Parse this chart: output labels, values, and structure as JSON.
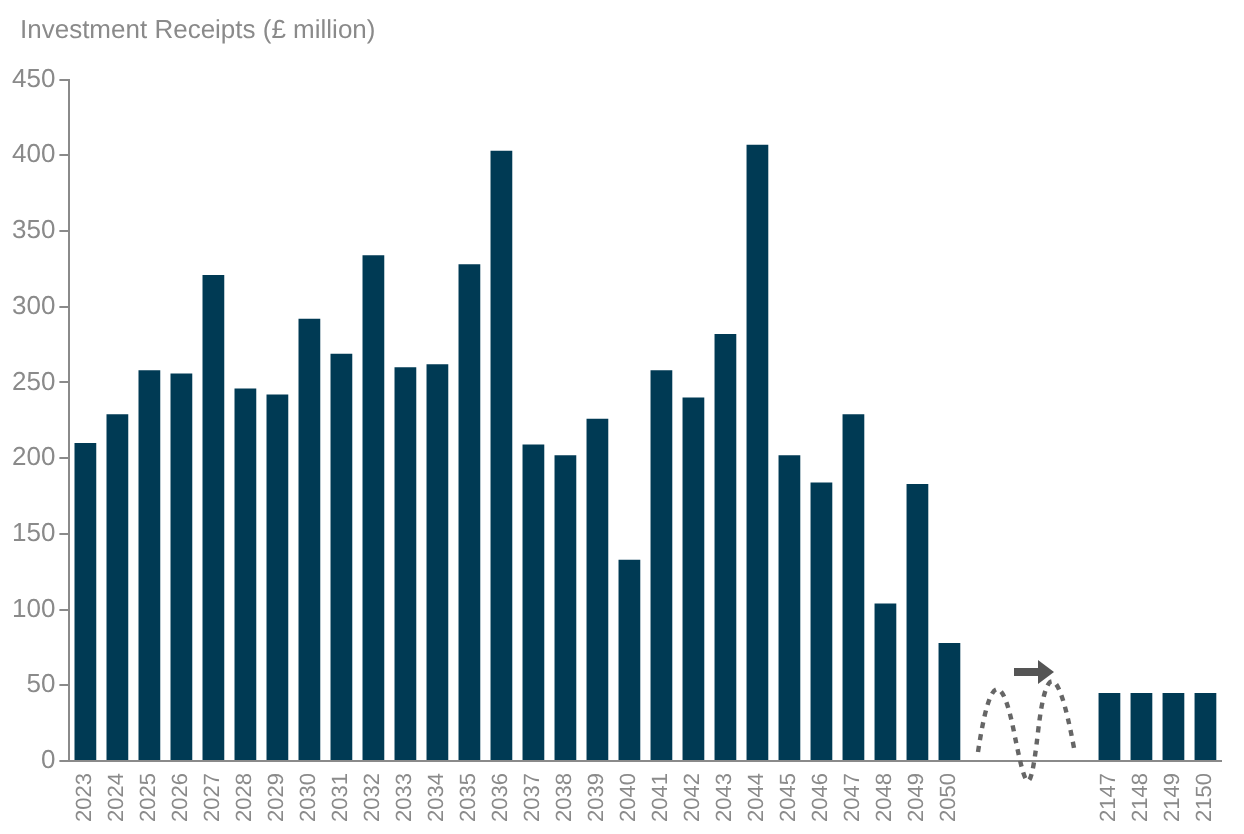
{
  "chart_data": {
    "type": "bar",
    "title": "Investment Receipts (£ million)",
    "categories": [
      "2023",
      "2024",
      "2025",
      "2026",
      "2027",
      "2028",
      "2029",
      "2030",
      "2031",
      "2032",
      "2033",
      "2034",
      "2035",
      "2036",
      "2037",
      "2038",
      "2039",
      "2040",
      "2041",
      "2042",
      "2043",
      "2044",
      "2045",
      "2046",
      "2047",
      "2048",
      "2049",
      "2050",
      null,
      null,
      null,
      null,
      "2147",
      "2148",
      "2149",
      "2150"
    ],
    "values": [
      210,
      229,
      258,
      256,
      321,
      246,
      242,
      292,
      269,
      334,
      260,
      262,
      328,
      403,
      209,
      202,
      226,
      133,
      258,
      240,
      282,
      407,
      202,
      184,
      229,
      104,
      183,
      78,
      null,
      null,
      null,
      null,
      45,
      45,
      45,
      45
    ],
    "color": "#003a54",
    "ylim": [
      0,
      450
    ],
    "yticks": [
      0,
      50,
      100,
      150,
      200,
      250,
      300,
      350,
      400,
      450
    ],
    "grid": false,
    "legend": false
  }
}
